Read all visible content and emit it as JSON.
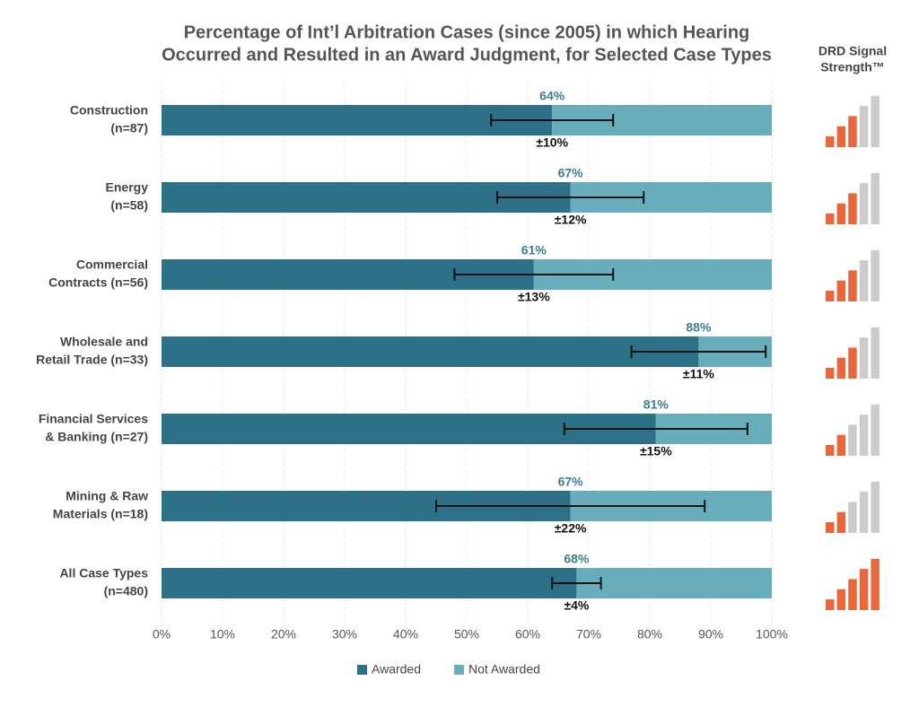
{
  "chart_data": {
    "type": "stacked-bar-horizontal",
    "title": [
      "Percentage of Int’l Arbitration Cases (since 2005) in which Hearing",
      "Occurred and Resulted in an Award Judgment, for Selected Case Types"
    ],
    "categories": [
      [
        "Construction",
        "(n=87)"
      ],
      [
        "Energy",
        "(n=58)"
      ],
      [
        "Commercial",
        "Contracts (n=56)"
      ],
      [
        "Wholesale and",
        "Retail Trade (n=33)"
      ],
      [
        "Financial Services",
        "& Banking (n=27)"
      ],
      [
        "Mining & Raw",
        "Materials (n=18)"
      ],
      [
        "All Case Types",
        "(n=480)"
      ]
    ],
    "series": [
      {
        "name": "Awarded",
        "color": "#2c7187",
        "values": [
          64,
          67,
          61,
          88,
          81,
          67,
          68
        ],
        "value_labels": [
          "64%",
          "67%",
          "61%",
          "88%",
          "81%",
          "67%",
          "68%"
        ],
        "errors": [
          10,
          12,
          13,
          11,
          15,
          22,
          4
        ],
        "error_labels": [
          "±10%",
          "±12%",
          "±13%",
          "±11%",
          "±15%",
          "±22%",
          "±4%"
        ]
      },
      {
        "name": "Not Awarded",
        "color": "#67adbb",
        "values": [
          36,
          33,
          39,
          12,
          19,
          33,
          32
        ]
      }
    ],
    "xlim": [
      0,
      100
    ],
    "xticks": [
      {
        "value": 0,
        "label": "0%"
      },
      {
        "value": 10,
        "label": "10%"
      },
      {
        "value": 20,
        "label": "20%"
      },
      {
        "value": 30,
        "label": "30%"
      },
      {
        "value": 40,
        "label": "40%"
      },
      {
        "value": 50,
        "label": "50%"
      },
      {
        "value": 60,
        "label": "60%"
      },
      {
        "value": 70,
        "label": "70%"
      },
      {
        "value": 80,
        "label": "80%"
      },
      {
        "value": 90,
        "label": "90%"
      },
      {
        "value": 100,
        "label": "100%"
      }
    ],
    "grid": true,
    "legend": "bottom",
    "signal_strength": {
      "title": [
        "DRD Signal",
        "Strength™"
      ],
      "values": [
        3,
        3,
        3,
        3,
        2,
        2,
        5
      ],
      "max": 5,
      "on_color": "#e9673b",
      "off_color": "#cbcbcb"
    }
  }
}
